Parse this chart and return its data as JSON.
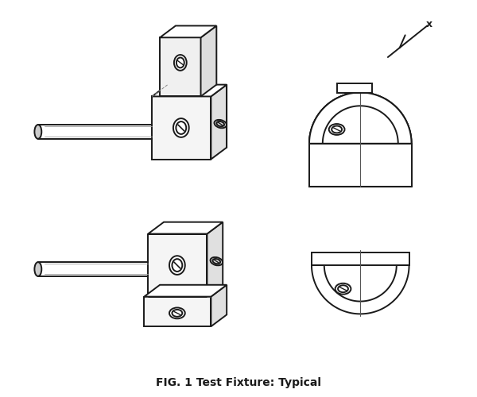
{
  "title": "FIG. 1 Test Fixture: Typical",
  "title_fontsize": 10,
  "title_fontweight": "bold",
  "background_color": "#ffffff",
  "line_color": "#1a1a1a",
  "fig_width": 6.0,
  "fig_height": 5.0,
  "x_label": "x"
}
